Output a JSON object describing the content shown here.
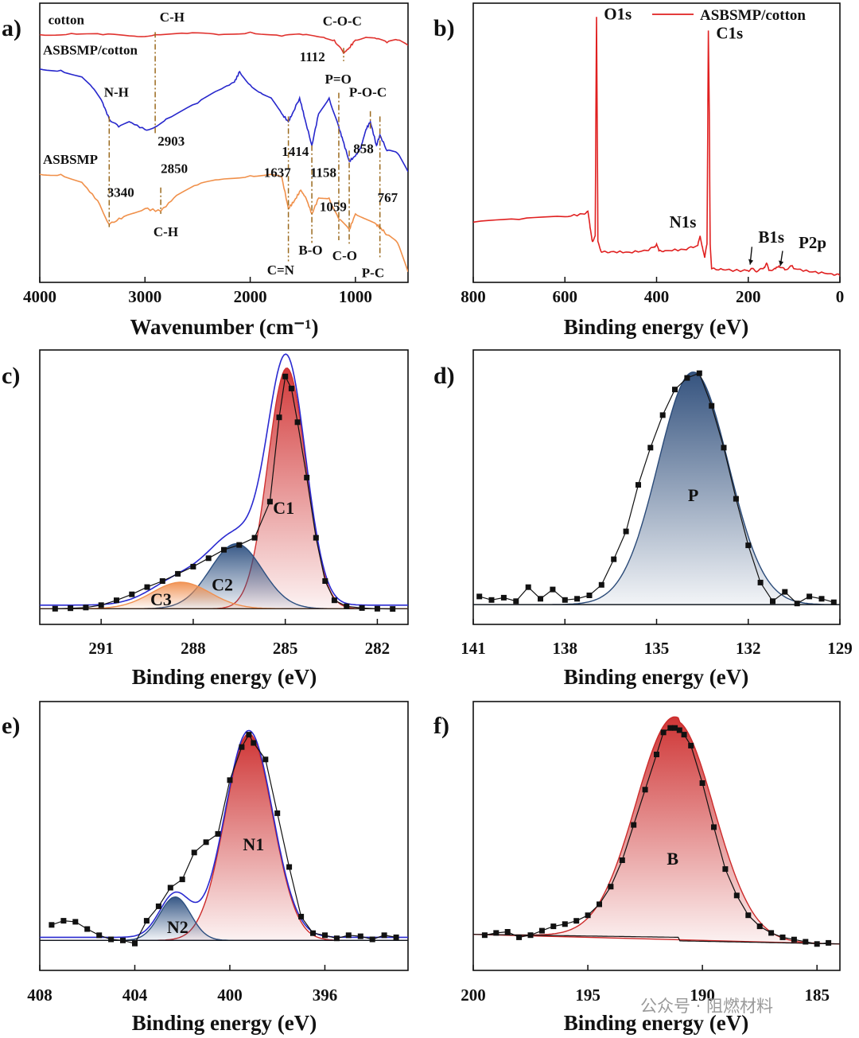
{
  "watermark": "公众号 · 阻燃材料",
  "chart_data": [
    {
      "panel": "a)",
      "type": "line",
      "xlabel": "Wavenumber (cm⁻¹)",
      "xlim": [
        4000,
        500
      ],
      "xticks": [
        4000,
        3000,
        2000,
        1000
      ],
      "series": [
        {
          "name": "cotton",
          "color": "#e0322e",
          "x": [
            4000,
            3700,
            3400,
            3100,
            2903,
            2600,
            2300,
            2000,
            1700,
            1500,
            1300,
            1200,
            1112,
            1060,
            1000,
            900,
            800,
            700,
            600,
            500
          ],
          "y": [
            9.2,
            9.25,
            9.2,
            9.15,
            9.2,
            9.25,
            9.2,
            9.3,
            9.15,
            9.2,
            9.1,
            9.0,
            8.5,
            8.7,
            9.0,
            9.1,
            9.05,
            8.9,
            9.0,
            8.8
          ]
        },
        {
          "name": "ASBSMP/cotton",
          "color": "#2727cc",
          "x": [
            4000,
            3800,
            3600,
            3500,
            3400,
            3340,
            3250,
            3150,
            3000,
            2903,
            2800,
            2500,
            2300,
            2150,
            2100,
            2000,
            1900,
            1800,
            1700,
            1637,
            1600,
            1530,
            1480,
            1414,
            1350,
            1250,
            1158,
            1120,
            1059,
            1000,
            950,
            900,
            858,
            800,
            767,
            700,
            600,
            500
          ],
          "y": [
            7.9,
            7.85,
            7.6,
            7.2,
            6.6,
            6.0,
            5.7,
            5.9,
            5.6,
            5.7,
            6.0,
            6.6,
            7.1,
            7.4,
            7.8,
            7.3,
            7.0,
            6.8,
            6.2,
            5.9,
            6.2,
            6.8,
            6.0,
            5.0,
            6.2,
            6.8,
            5.7,
            5.2,
            4.4,
            4.6,
            4.9,
            5.6,
            5.9,
            5.0,
            5.4,
            4.8,
            4.7,
            4.0
          ]
        },
        {
          "name": "ASBSMP",
          "color": "#f0904a",
          "x": [
            4000,
            3800,
            3600,
            3450,
            3340,
            3200,
            3000,
            2850,
            2700,
            2500,
            2300,
            2000,
            1800,
            1700,
            1637,
            1580,
            1520,
            1470,
            1414,
            1350,
            1250,
            1158,
            1059,
            1000,
            900,
            800,
            767,
            700,
            600,
            500
          ],
          "y": [
            3.9,
            3.9,
            3.6,
            2.9,
            2.0,
            2.3,
            2.6,
            2.5,
            3.1,
            3.5,
            3.7,
            3.85,
            3.9,
            3.8,
            2.6,
            2.9,
            3.3,
            3.0,
            2.4,
            3.0,
            3.0,
            2.2,
            1.8,
            2.4,
            2.2,
            2.0,
            1.9,
            1.6,
            1.3,
            0.2
          ]
        }
      ],
      "annotations": [
        {
          "text": "cotton",
          "x": 3920,
          "y": 9.6
        },
        {
          "text": "ASBSMP/cotton",
          "x": 3970,
          "y": 8.45
        },
        {
          "text": "ASBSMP",
          "x": 3970,
          "y": 4.3
        },
        {
          "text": "C-H",
          "x": 2860,
          "y": 9.7
        },
        {
          "text": "C-O-C",
          "x": 1310,
          "y": 9.55
        },
        {
          "text": "1112",
          "x": 1530,
          "y": 8.2
        },
        {
          "text": "N-H",
          "x": 3390,
          "y": 6.85
        },
        {
          "text": "2903",
          "x": 2880,
          "y": 5.0
        },
        {
          "text": "P=O",
          "x": 1290,
          "y": 7.35
        },
        {
          "text": "P-O-C",
          "x": 1060,
          "y": 6.85
        },
        {
          "text": "1414",
          "x": 1700,
          "y": 4.6
        },
        {
          "text": "858",
          "x": 1020,
          "y": 4.7
        },
        {
          "text": "1637",
          "x": 1870,
          "y": 3.8
        },
        {
          "text": "1158",
          "x": 1430,
          "y": 3.8
        },
        {
          "text": "3340",
          "x": 3360,
          "y": 3.05
        },
        {
          "text": "2850",
          "x": 2850,
          "y": 3.95
        },
        {
          "text": "1059",
          "x": 1340,
          "y": 2.5
        },
        {
          "text": "767",
          "x": 790,
          "y": 2.85
        },
        {
          "text": "C-H",
          "x": 2920,
          "y": 1.55
        },
        {
          "text": "B-O",
          "x": 1540,
          "y": 0.85
        },
        {
          "text": "C-O",
          "x": 1220,
          "y": 0.65
        },
        {
          "text": "C=N",
          "x": 1840,
          "y": 0.1
        },
        {
          "text": "P-C",
          "x": 940,
          "y": 0.0
        }
      ],
      "vlines": [
        {
          "x": 2903,
          "y1": 9.3,
          "y2": 5.4
        },
        {
          "x": 3340,
          "y1": 6.1,
          "y2": 1.9
        },
        {
          "x": 2850,
          "y1": 3.4,
          "y2": 2.4
        },
        {
          "x": 1637,
          "y1": 6.1,
          "y2": 0.6
        },
        {
          "x": 1414,
          "y1": 5.0,
          "y2": 1.3
        },
        {
          "x": 1158,
          "y1": 7.0,
          "y2": 1.4
        },
        {
          "x": 1059,
          "y1": 4.8,
          "y2": 1.2
        },
        {
          "x": 1112,
          "y1": 8.7,
          "y2": 8.2
        },
        {
          "x": 858,
          "y1": 6.3,
          "y2": 5.6
        },
        {
          "x": 767,
          "y1": 6.1,
          "y2": 0.7
        }
      ]
    },
    {
      "panel": "b)",
      "type": "line",
      "xlabel": "Binding energy (eV)",
      "xlim": [
        800,
        0
      ],
      "xticks": [
        800,
        600,
        400,
        200,
        0
      ],
      "legend": {
        "label": "ASBSMP/cotton",
        "position": "top-right"
      },
      "series": [
        {
          "name": "ASBSMP/cotton",
          "color": "#e02020",
          "x": [
            800,
            700,
            600,
            560,
            550,
            545,
            540,
            534,
            531,
            528,
            520,
            500,
            460,
            420,
            405,
            400,
            395,
            380,
            340,
            310,
            305,
            300,
            295,
            290,
            287,
            285,
            283,
            280,
            250,
            200,
            192,
            180,
            165,
            160,
            155,
            140,
            133,
            120,
            105,
            100,
            60,
            20,
            0
          ],
          "y": [
            20.0,
            21.0,
            22.0,
            23.0,
            24.0,
            18.0,
            13.0,
            15.0,
            95.0,
            13.0,
            9.0,
            9.2,
            9.0,
            9.6,
            11.0,
            12.0,
            9.5,
            9.6,
            10.0,
            11.5,
            15.0,
            11.0,
            7.0,
            12.0,
            90.0,
            60.0,
            12.0,
            3.0,
            2.5,
            2.2,
            3.0,
            2.0,
            3.5,
            5.0,
            2.4,
            3.0,
            4.0,
            2.6,
            4.0,
            3.0,
            1.8,
            1.2,
            0.6
          ]
        }
      ],
      "annotations": [
        {
          "text": "O1s",
          "x": 515,
          "y": 94.0
        },
        {
          "text": "C1s",
          "x": 270,
          "y": 87.0
        },
        {
          "text": "N1s",
          "x": 372,
          "y": 18.0
        },
        {
          "text": "B1s",
          "x": 178,
          "y": 12.5
        },
        {
          "text": "P2p",
          "x": 90,
          "y": 10.5
        }
      ]
    },
    {
      "panel": "c)",
      "type": "line",
      "xlabel": "Binding energy (eV)",
      "xlim": [
        293,
        281
      ],
      "xticks": [
        291,
        288,
        285,
        282
      ],
      "peaks": [
        {
          "name": "C1",
          "center": 284.95,
          "sigma": 0.62,
          "amp": 100,
          "color": "#d03030"
        },
        {
          "name": "C2",
          "center": 286.6,
          "sigma": 0.85,
          "amp": 27,
          "color": "#2c4f80"
        },
        {
          "name": "C3",
          "center": 288.4,
          "sigma": 0.95,
          "amp": 11,
          "color": "#f09050"
        }
      ],
      "points": {
        "x": [
          292.5,
          292.0,
          291.5,
          291.0,
          290.5,
          290.0,
          289.5,
          289.0,
          288.5,
          288.0,
          287.5,
          287.0,
          286.5,
          286.0,
          285.5,
          285.2,
          285.0,
          284.8,
          284.6,
          284.3,
          284.0,
          283.7,
          283.4,
          283.0,
          282.5,
          282.0,
          281.5
        ],
        "y": [
          0.5,
          0.7,
          1.0,
          2.0,
          4.0,
          6.5,
          9.5,
          12.0,
          15.0,
          18.0,
          21.5,
          25.0,
          27.0,
          30.0,
          45.0,
          80.0,
          97.0,
          92.0,
          78.0,
          55.0,
          30.0,
          12.0,
          4.0,
          1.5,
          0.8,
          0.5,
          0.4
        ]
      },
      "annotations": [
        {
          "text": "C1",
          "x": 285.05,
          "y": 40
        },
        {
          "text": "C2",
          "x": 287.05,
          "y": 8
        },
        {
          "text": "C3",
          "x": 289.05,
          "y": 2
        }
      ]
    },
    {
      "panel": "d)",
      "type": "line",
      "xlabel": "Binding energy (eV)",
      "xlim": [
        141,
        129
      ],
      "xticks": [
        141,
        138,
        135,
        132,
        129
      ],
      "peaks": [
        {
          "name": "P",
          "center": 133.8,
          "sigma": 1.15,
          "amp": 100,
          "color": "#2a4a78"
        }
      ],
      "points": {
        "x": [
          140.8,
          140.4,
          140.0,
          139.6,
          139.2,
          138.8,
          138.4,
          138.0,
          137.6,
          137.2,
          136.8,
          136.4,
          136.0,
          135.6,
          135.2,
          134.8,
          134.4,
          134.0,
          133.6,
          133.2,
          132.8,
          132.4,
          132.0,
          131.6,
          131.2,
          130.8,
          130.4,
          130.0,
          129.6,
          129.2
        ],
        "y": [
          4.0,
          2.5,
          3.5,
          2.0,
          8.0,
          3.0,
          7.0,
          2.5,
          3.0,
          4.5,
          9.0,
          20.0,
          32.0,
          52.0,
          68.0,
          82.0,
          93.0,
          98.0,
          100.0,
          86.0,
          68.0,
          46.0,
          26.0,
          10.0,
          2.0,
          6.0,
          1.0,
          4.0,
          3.0,
          1.5
        ]
      },
      "annotations": [
        {
          "text": "P",
          "x": 133.8,
          "y": 45
        }
      ]
    },
    {
      "panel": "e)",
      "type": "line",
      "xlabel": "Binding energy (eV)",
      "xlim": [
        408,
        392.5
      ],
      "xticks": [
        408,
        404,
        400,
        396
      ],
      "peaks": [
        {
          "name": "N1",
          "center": 399.2,
          "sigma": 1.0,
          "amp": 100,
          "color": "#cc2a2a"
        },
        {
          "name": "N2",
          "center": 402.3,
          "sigma": 0.65,
          "amp": 21,
          "color": "#2c4f80"
        }
      ],
      "points": {
        "x": [
          407.5,
          407.0,
          406.5,
          406.0,
          405.5,
          405.0,
          404.5,
          404.0,
          403.5,
          403.0,
          402.5,
          402.0,
          401.5,
          401.0,
          400.5,
          400.0,
          399.5,
          399.2,
          399.0,
          398.5,
          398.0,
          397.5,
          397.0,
          396.5,
          396.0,
          395.5,
          395.0,
          394.5,
          394.0,
          393.5,
          393.0
        ],
        "y": [
          8.0,
          10.0,
          9.5,
          6.0,
          3.0,
          1.0,
          0.5,
          -1.0,
          10.0,
          17.0,
          26.0,
          30.0,
          43.0,
          48.0,
          52.0,
          78.0,
          94.0,
          100.0,
          96.0,
          88.0,
          62.0,
          36.0,
          12.0,
          4.0,
          3.0,
          1.5,
          3.0,
          2.5,
          1.0,
          3.0,
          2.0
        ]
      },
      "annotations": [
        {
          "text": "N1",
          "x": 399.0,
          "y": 44
        },
        {
          "text": "N2",
          "x": 402.2,
          "y": 4
        }
      ]
    },
    {
      "panel": "f)",
      "type": "line",
      "xlabel": "Binding energy (eV)",
      "xlim": [
        200,
        184
      ],
      "xticks": [
        200,
        195,
        190,
        185
      ],
      "peaks": [
        {
          "name": "B",
          "center": 191.2,
          "sigma": 1.7,
          "amp": 100,
          "color": "#cc2a2a"
        }
      ],
      "points": {
        "x": [
          199.5,
          199.0,
          198.5,
          198.0,
          197.5,
          197.0,
          196.5,
          196.0,
          195.5,
          195.0,
          194.5,
          194.0,
          193.5,
          193.0,
          192.5,
          192.0,
          191.7,
          191.4,
          191.2,
          191.0,
          190.8,
          190.5,
          190.0,
          189.5,
          189.0,
          188.5,
          188.0,
          187.5,
          187.0,
          186.5,
          186.0,
          185.5,
          185.0,
          184.5
        ],
        "y": [
          6.0,
          7.0,
          7.5,
          5.0,
          6.0,
          8.0,
          10.0,
          11.0,
          12.5,
          15.0,
          20.0,
          28.0,
          40.0,
          56.0,
          72.0,
          88.0,
          98.0,
          100.0,
          100.0,
          99.0,
          97.0,
          92.0,
          75.0,
          55.0,
          36.0,
          24.0,
          15.0,
          10.0,
          7.0,
          5.0,
          4.0,
          3.0,
          2.0,
          2.5
        ]
      },
      "annotations": [
        {
          "text": "B",
          "x": 191.3,
          "y": 38
        }
      ]
    }
  ]
}
